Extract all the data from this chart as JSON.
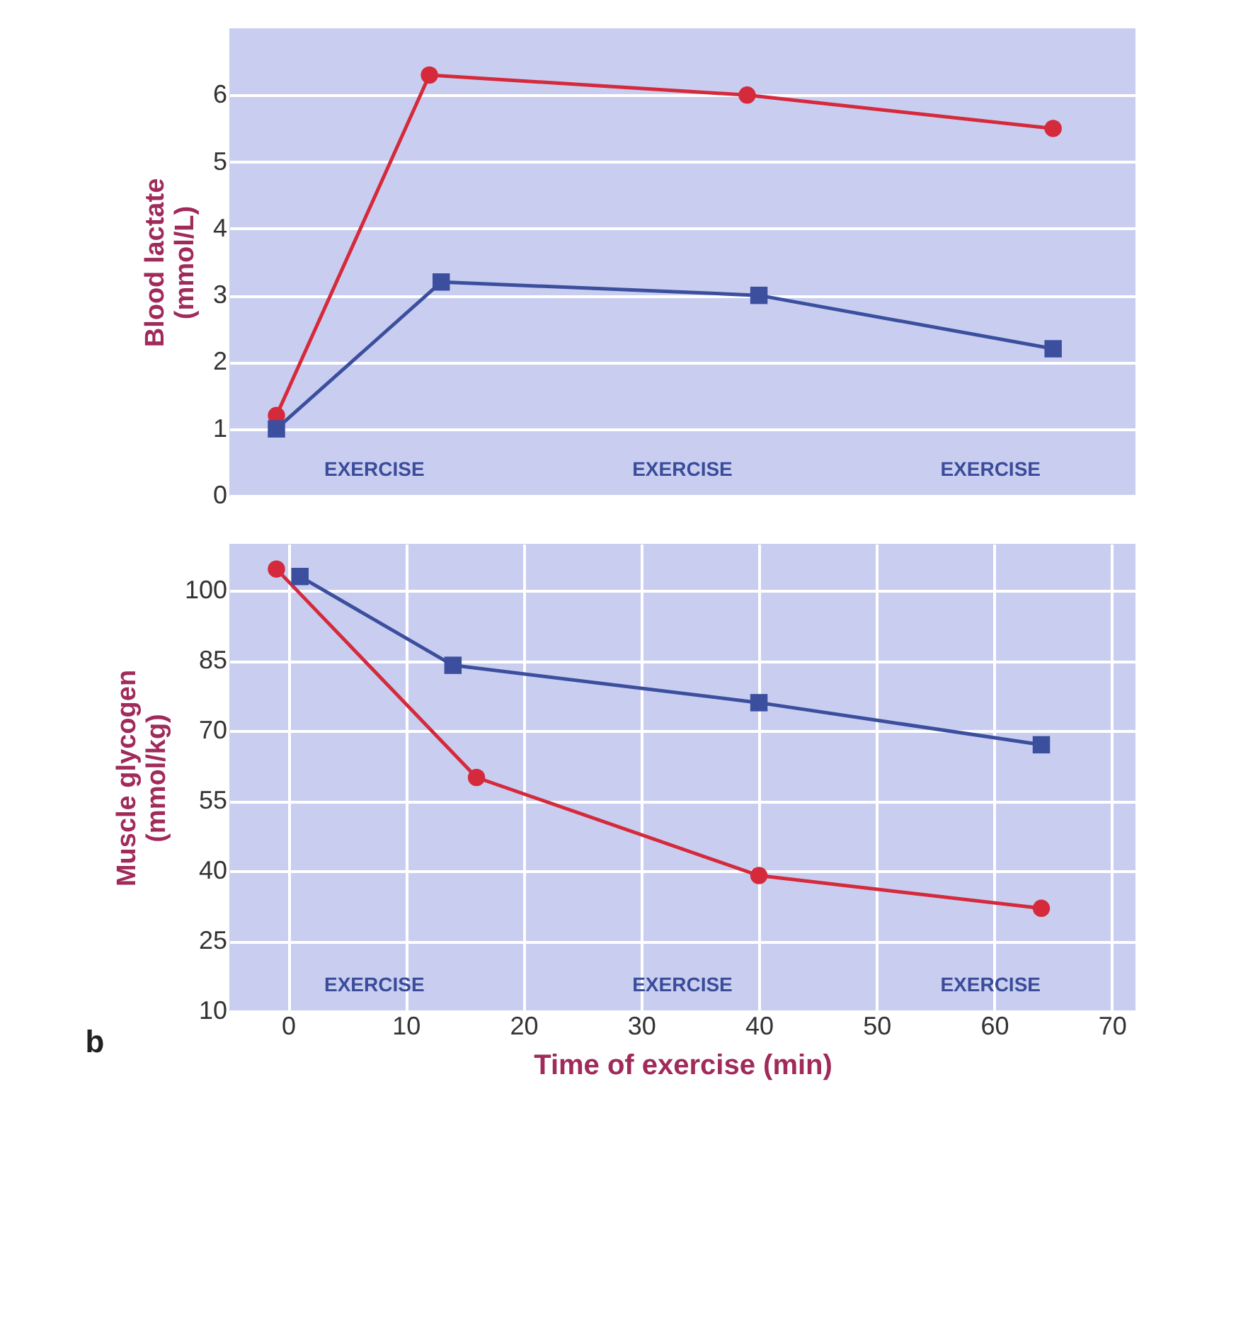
{
  "chart_data": [
    {
      "type": "line",
      "ylabel": "Blood lactate\n(mmol/L)",
      "xlim": [
        -5,
        72
      ],
      "ylim": [
        0,
        7
      ],
      "yticks": [
        0,
        1,
        2,
        3,
        4,
        5,
        6
      ],
      "tick_labels": "y",
      "grid": true,
      "line_style": "solid",
      "series": [
        {
          "color": "#d42a3c",
          "marker": "circle",
          "x": [
            -1,
            12,
            39,
            65
          ],
          "values": [
            1.2,
            6.3,
            6.0,
            5.5
          ]
        },
        {
          "color": "#3b4f9e",
          "marker": "square",
          "x": [
            -1,
            13,
            40,
            65
          ],
          "values": [
            1.0,
            3.2,
            3.0,
            2.2
          ]
        }
      ],
      "annotations": [
        "EXERCISE",
        "EXERCISE",
        "EXERCISE"
      ]
    },
    {
      "type": "line",
      "xlabel": "Time of exercise (min)",
      "ylabel": "Muscle glycogen\n(mmol/kg)",
      "xlim": [
        -5,
        72
      ],
      "xticks": [
        0,
        10,
        20,
        30,
        40,
        50,
        60,
        70
      ],
      "ylim": [
        10,
        110
      ],
      "yticks": [
        10,
        25,
        40,
        55,
        70,
        85,
        100
      ],
      "grid": true,
      "line_style": "solid",
      "series": [
        {
          "color": "#d42a3c",
          "marker": "circle",
          "x": [
            -1,
            16,
            40,
            64
          ],
          "values": [
            104.6,
            60,
            39,
            32
          ]
        },
        {
          "color": "#3b4f9e",
          "marker": "square",
          "x": [
            1,
            14,
            40,
            64
          ],
          "values": [
            103,
            84,
            76,
            67
          ]
        }
      ],
      "annotations": [
        "EXERCISE",
        "EXERCISE",
        "EXERCISE",
        "b"
      ]
    }
  ]
}
